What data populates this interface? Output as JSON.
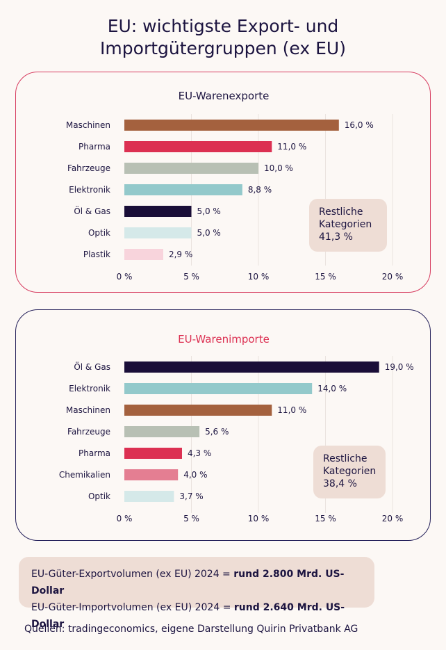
{
  "title_line1": "EU: wichtigste Export- und",
  "title_line2": "Importgütergruppen (ex EU)",
  "chart_data": [
    {
      "type": "bar",
      "orientation": "horizontal",
      "title": "EU-Warenexporte",
      "title_color": "#1c1440",
      "categories": [
        "Maschinen",
        "Pharma",
        "Fahrzeuge",
        "Elektronik",
        "Öl & Gas",
        "Optik",
        "Plastik"
      ],
      "values": [
        16.0,
        11.0,
        10.0,
        8.8,
        5.0,
        5.0,
        2.9
      ],
      "value_labels": [
        "16,0 %",
        "11,0 %",
        "10,0 %",
        "8,8 %",
        "5,0 %",
        "5,0 %",
        "2,9 %"
      ],
      "colors": [
        "#a4613e",
        "#dc3052",
        "#b8c0b4",
        "#93c9cb",
        "#1a0e38",
        "#d5e9e9",
        "#f8d4dc"
      ],
      "xlim": [
        0,
        20
      ],
      "xticks": [
        "0 %",
        "5 %",
        "10 %",
        "15 %",
        "20 %"
      ],
      "grid": true,
      "annotation": {
        "line1": "Restliche",
        "line2": "Kategorien",
        "line3": "41,3 %"
      }
    },
    {
      "type": "bar",
      "orientation": "horizontal",
      "title": "EU-Warenimporte",
      "title_color": "#dc3052",
      "categories": [
        "Öl & Gas",
        "Elektronik",
        "Maschinen",
        "Fahrzeuge",
        "Pharma",
        "Chemikalien",
        "Optik"
      ],
      "values": [
        19.0,
        14.0,
        11.0,
        5.6,
        4.3,
        4.0,
        3.7
      ],
      "value_labels": [
        "19,0 %",
        "14,0 %",
        "11,0 %",
        "5,6 %",
        "4,3 %",
        "4,0 %",
        "3,7 %"
      ],
      "colors": [
        "#1a0e38",
        "#93c9cb",
        "#a4613e",
        "#b8c0b4",
        "#dc3052",
        "#e47e92",
        "#d5e9e9"
      ],
      "xlim": [
        0,
        20
      ],
      "xticks": [
        "0 %",
        "5 %",
        "10 %",
        "15 %",
        "20 %"
      ],
      "grid": true,
      "annotation": {
        "line1": "Restliche",
        "line2": "Kategorien",
        "line3": "38,4 %"
      }
    }
  ],
  "volume": {
    "export_prefix": "EU-Güter-Exportvolumen (ex EU) 2024 = ",
    "export_value": "rund 2.800 Mrd. US-Dollar",
    "import_prefix": "EU-Güter-Importvolumen (ex EU) 2024 = ",
    "import_value": "rund 2.640 Mrd. US-Dollar"
  },
  "source": "Quellen: tradingeconomics, eigene Darstellung Quirin Privatbank AG"
}
